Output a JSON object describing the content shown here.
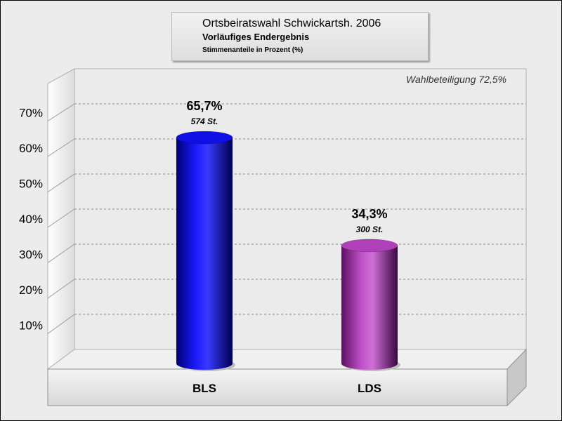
{
  "header": {
    "title": "Ortsbeiratswahl Schwickartsh. 2006",
    "subtitle": "Vorläufiges Endergebnis",
    "note": "Stimmenanteile in Prozent (%)"
  },
  "annotation": "Wahlbeteiligung 72,5%",
  "chart_data": {
    "type": "bar",
    "title": "Ortsbeiratswahl Schwickartsh. 2006",
    "subtitle": "Vorläufiges Endergebnis",
    "ylabel": "Stimmenanteile in Prozent (%)",
    "categories": [
      "BLS",
      "LDS"
    ],
    "values": [
      65.7,
      34.3
    ],
    "value_labels": [
      "65,7%",
      "34,3%"
    ],
    "votes": [
      574,
      300
    ],
    "vote_labels": [
      "574 St.",
      "300 St."
    ],
    "colors": [
      "#1010e6",
      "#b040b8"
    ],
    "yticks": [
      10,
      20,
      30,
      40,
      50,
      60,
      70
    ],
    "ytick_labels": [
      "10%",
      "20%",
      "30%",
      "40%",
      "50%",
      "60%",
      "70%"
    ],
    "ylim": [
      0,
      70
    ],
    "grid": true,
    "annotation": "Wahlbeteiligung 72,5%"
  }
}
